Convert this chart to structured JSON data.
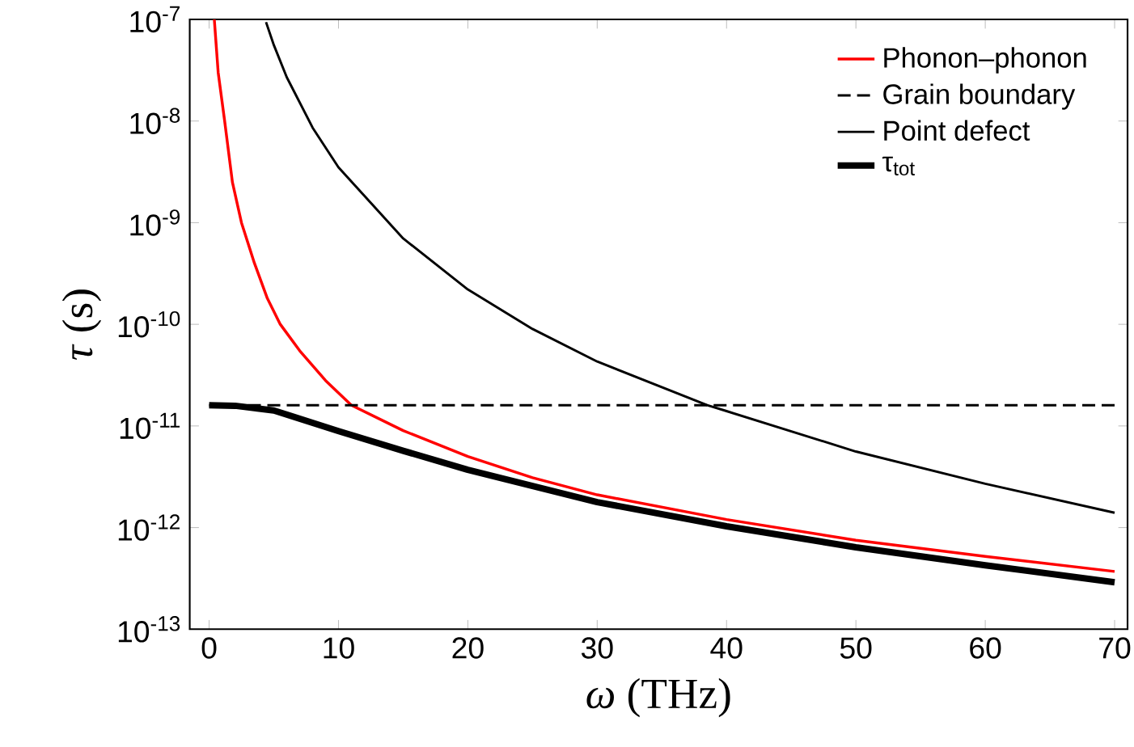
{
  "chart_data": {
    "type": "line",
    "xlabel": "*ω* (THz)",
    "ylabel": "*τ* (s)",
    "log": "y",
    "legend": "top right",
    "marker": "none",
    "grid": false,
    "xlim": [
      -1.5,
      71
    ],
    "xticks": [
      0,
      10,
      20,
      30,
      40,
      50,
      60,
      70
    ],
    "ylim": [
      1e-13,
      1e-07
    ],
    "yticks": [
      {
        "value": 1e-13,
        "label": "10$^{-13}$"
      },
      {
        "value": 1e-12,
        "label": "10$^{-12}$"
      },
      {
        "value": 1e-11,
        "label": "10$^{-11}$"
      },
      {
        "value": 1e-10,
        "label": "10$^{-10}$"
      },
      {
        "value": 1e-09,
        "label": "10$^{-9}$"
      },
      {
        "value": 1e-08,
        "label": "10$^{-8}$"
      },
      {
        "value": 1e-07,
        "label": "10$^{-7}$"
      }
    ],
    "series": [
      {
        "name": "Phonon–phonon",
        "color": "#ff0000",
        "line_style": "solid",
        "x": [
          0.4,
          0.7,
          1.2,
          1.8,
          2.5,
          3.5,
          4.5,
          5.5,
          7,
          9,
          11,
          15,
          20,
          25,
          30,
          40,
          50,
          60,
          70
        ],
        "values": [
          1e-07,
          3e-08,
          1e-08,
          2.5e-09,
          1e-09,
          4e-10,
          1.8e-10,
          1e-10,
          5.5e-11,
          2.8e-11,
          1.6e-11,
          9e-12,
          5e-12,
          3.1e-12,
          2.1e-12,
          1.2e-12,
          7.5e-13,
          5.2e-13,
          3.7e-13
        ]
      },
      {
        "name": "Grain boundary",
        "color": "#000000",
        "line_style": "dashed",
        "x": [
          0,
          70
        ],
        "values": [
          1.6e-11,
          1.6e-11
        ]
      },
      {
        "name": "Point defect",
        "color": "#000000",
        "line_style": "solid",
        "x": [
          4.4,
          5,
          6,
          8,
          10,
          15,
          20,
          25,
          30,
          38.5,
          40,
          50,
          60,
          70
        ],
        "values": [
          9.4e-08,
          5.6e-08,
          2.7e-08,
          8.6e-09,
          3.5e-09,
          7e-10,
          2.2e-10,
          9e-11,
          4.3e-11,
          1.6e-11,
          1.4e-11,
          5.6e-12,
          2.7e-12,
          1.4e-12
        ]
      },
      {
        "name": "τ$_{tot}$",
        "color": "#000000",
        "line_style": "solid",
        "x": [
          0,
          2,
          5,
          10,
          15,
          20,
          30,
          40,
          50,
          60,
          70
        ],
        "values": [
          1.6e-11,
          1.58e-11,
          1.42e-11,
          8.9e-12,
          5.7e-12,
          3.7e-12,
          1.78e-12,
          1.03e-12,
          6.4e-13,
          4.25e-13,
          2.9e-13
        ]
      }
    ]
  }
}
